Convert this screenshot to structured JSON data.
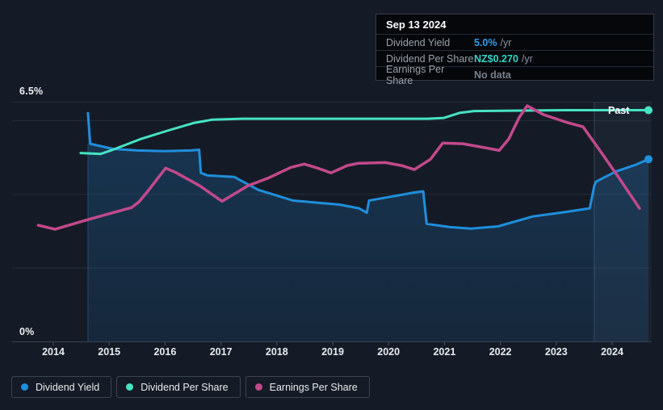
{
  "page": {
    "background": "#151b26",
    "accent_blue": "#1f8fdd",
    "accent_teal": "#46e3c3",
    "accent_pink": "#c2498c"
  },
  "tooltip": {
    "date": "Sep 13 2024",
    "rows": [
      {
        "label": "Dividend Yield",
        "value": "5.0%",
        "suffix": "/yr",
        "value_color": "#2e9ce8"
      },
      {
        "label": "Dividend Per Share",
        "value": "NZ$0.270",
        "suffix": "/yr",
        "value_color": "#2fd5c6"
      },
      {
        "label": "Earnings Per Share",
        "value": "No data",
        "suffix": "",
        "value_color": "#79818c"
      }
    ]
  },
  "axes": {
    "y_top_label": "6.5%",
    "y_bottom_label": "0%",
    "x_ticks": [
      "2014",
      "2015",
      "2016",
      "2017",
      "2018",
      "2019",
      "2020",
      "2021",
      "2022",
      "2023",
      "2024"
    ]
  },
  "past_label": "Past",
  "legend": [
    {
      "label": "Dividend Yield",
      "color": "#1f8fdd"
    },
    {
      "label": "Dividend Per Share",
      "color": "#46e3c3"
    },
    {
      "label": "Earnings Per Share",
      "color": "#c2498c"
    }
  ],
  "chart_data": {
    "type": "line",
    "title": "Dividend history (Past)",
    "x": {
      "min": 2013.25,
      "max": 2024.72,
      "ticks": [
        2014,
        2015,
        2016,
        2017,
        2018,
        2019,
        2020,
        2021,
        2022,
        2023,
        2024
      ]
    },
    "y": {
      "min": 0,
      "max": 6.5,
      "unit": "%",
      "top_label": "6.5%",
      "bottom_label": "0%",
      "gridlines_pct": [
        6.5,
        6,
        4,
        2
      ]
    },
    "annotations": {
      "past_divider_year": 2023.68,
      "highlight_from_year": 2023.68,
      "past_label": "Past"
    },
    "series": [
      {
        "name": "Dividend Yield",
        "color": "#1f8fdd",
        "unit": "%",
        "scale": "pct",
        "style": "area",
        "end_dot": true,
        "points": [
          [
            2014.62,
            6.2
          ],
          [
            2014.66,
            5.37
          ],
          [
            2015.07,
            5.23
          ],
          [
            2015.5,
            5.19
          ],
          [
            2015.98,
            5.17
          ],
          [
            2016.47,
            5.19
          ],
          [
            2016.61,
            5.21
          ],
          [
            2016.64,
            4.58
          ],
          [
            2016.76,
            4.51
          ],
          [
            2017.24,
            4.47
          ],
          [
            2017.67,
            4.12
          ],
          [
            2018.29,
            3.83
          ],
          [
            2019.12,
            3.72
          ],
          [
            2019.47,
            3.62
          ],
          [
            2019.61,
            3.5
          ],
          [
            2019.65,
            3.83
          ],
          [
            2019.84,
            3.88
          ],
          [
            2020.46,
            4.05
          ],
          [
            2020.62,
            4.08
          ],
          [
            2020.68,
            3.2
          ],
          [
            2021.1,
            3.11
          ],
          [
            2021.47,
            3.07
          ],
          [
            2021.96,
            3.13
          ],
          [
            2022.58,
            3.4
          ],
          [
            2023.12,
            3.51
          ],
          [
            2023.6,
            3.62
          ],
          [
            2023.68,
            4.23
          ],
          [
            2023.71,
            4.34
          ],
          [
            2024.07,
            4.62
          ],
          [
            2024.42,
            4.8
          ],
          [
            2024.65,
            4.95
          ]
        ]
      },
      {
        "name": "Dividend Per Share",
        "color": "#46e3c3",
        "unit": "NZ$",
        "scale": "dps",
        "style": "line",
        "end_dot": true,
        "points": [
          [
            2014.49,
            0.22
          ],
          [
            2014.85,
            0.219
          ],
          [
            2015.07,
            0.224
          ],
          [
            2015.55,
            0.236
          ],
          [
            2016.04,
            0.246
          ],
          [
            2016.51,
            0.255
          ],
          [
            2016.85,
            0.259
          ],
          [
            2017.38,
            0.26
          ],
          [
            2019.12,
            0.26
          ],
          [
            2020.7,
            0.26
          ],
          [
            2020.99,
            0.261
          ],
          [
            2021.28,
            0.267
          ],
          [
            2021.53,
            0.269
          ],
          [
            2023.16,
            0.27
          ],
          [
            2024.65,
            0.27
          ]
        ]
      },
      {
        "name": "Earnings Per Share",
        "color": "#c2498c",
        "unit": "relative (no data scale shown)",
        "scale": "pct",
        "style": "line",
        "end_dot": false,
        "points": [
          [
            2013.73,
            3.16
          ],
          [
            2014.03,
            3.05
          ],
          [
            2014.61,
            3.31
          ],
          [
            2015.4,
            3.64
          ],
          [
            2015.53,
            3.79
          ],
          [
            2015.69,
            4.08
          ],
          [
            2016.01,
            4.71
          ],
          [
            2016.18,
            4.6
          ],
          [
            2016.62,
            4.23
          ],
          [
            2017.02,
            3.81
          ],
          [
            2017.48,
            4.23
          ],
          [
            2017.86,
            4.45
          ],
          [
            2018.25,
            4.73
          ],
          [
            2018.49,
            4.82
          ],
          [
            2018.73,
            4.71
          ],
          [
            2018.97,
            4.58
          ],
          [
            2019.26,
            4.78
          ],
          [
            2019.45,
            4.84
          ],
          [
            2019.94,
            4.86
          ],
          [
            2020.23,
            4.78
          ],
          [
            2020.46,
            4.67
          ],
          [
            2020.75,
            4.95
          ],
          [
            2020.97,
            5.39
          ],
          [
            2021.33,
            5.37
          ],
          [
            2021.67,
            5.28
          ],
          [
            2021.98,
            5.19
          ],
          [
            2022.15,
            5.5
          ],
          [
            2022.34,
            6.09
          ],
          [
            2022.48,
            6.4
          ],
          [
            2022.77,
            6.16
          ],
          [
            2023.21,
            5.94
          ],
          [
            2023.48,
            5.83
          ],
          [
            2023.84,
            5.06
          ],
          [
            2024.17,
            4.34
          ],
          [
            2024.49,
            3.62
          ]
        ]
      }
    ]
  }
}
